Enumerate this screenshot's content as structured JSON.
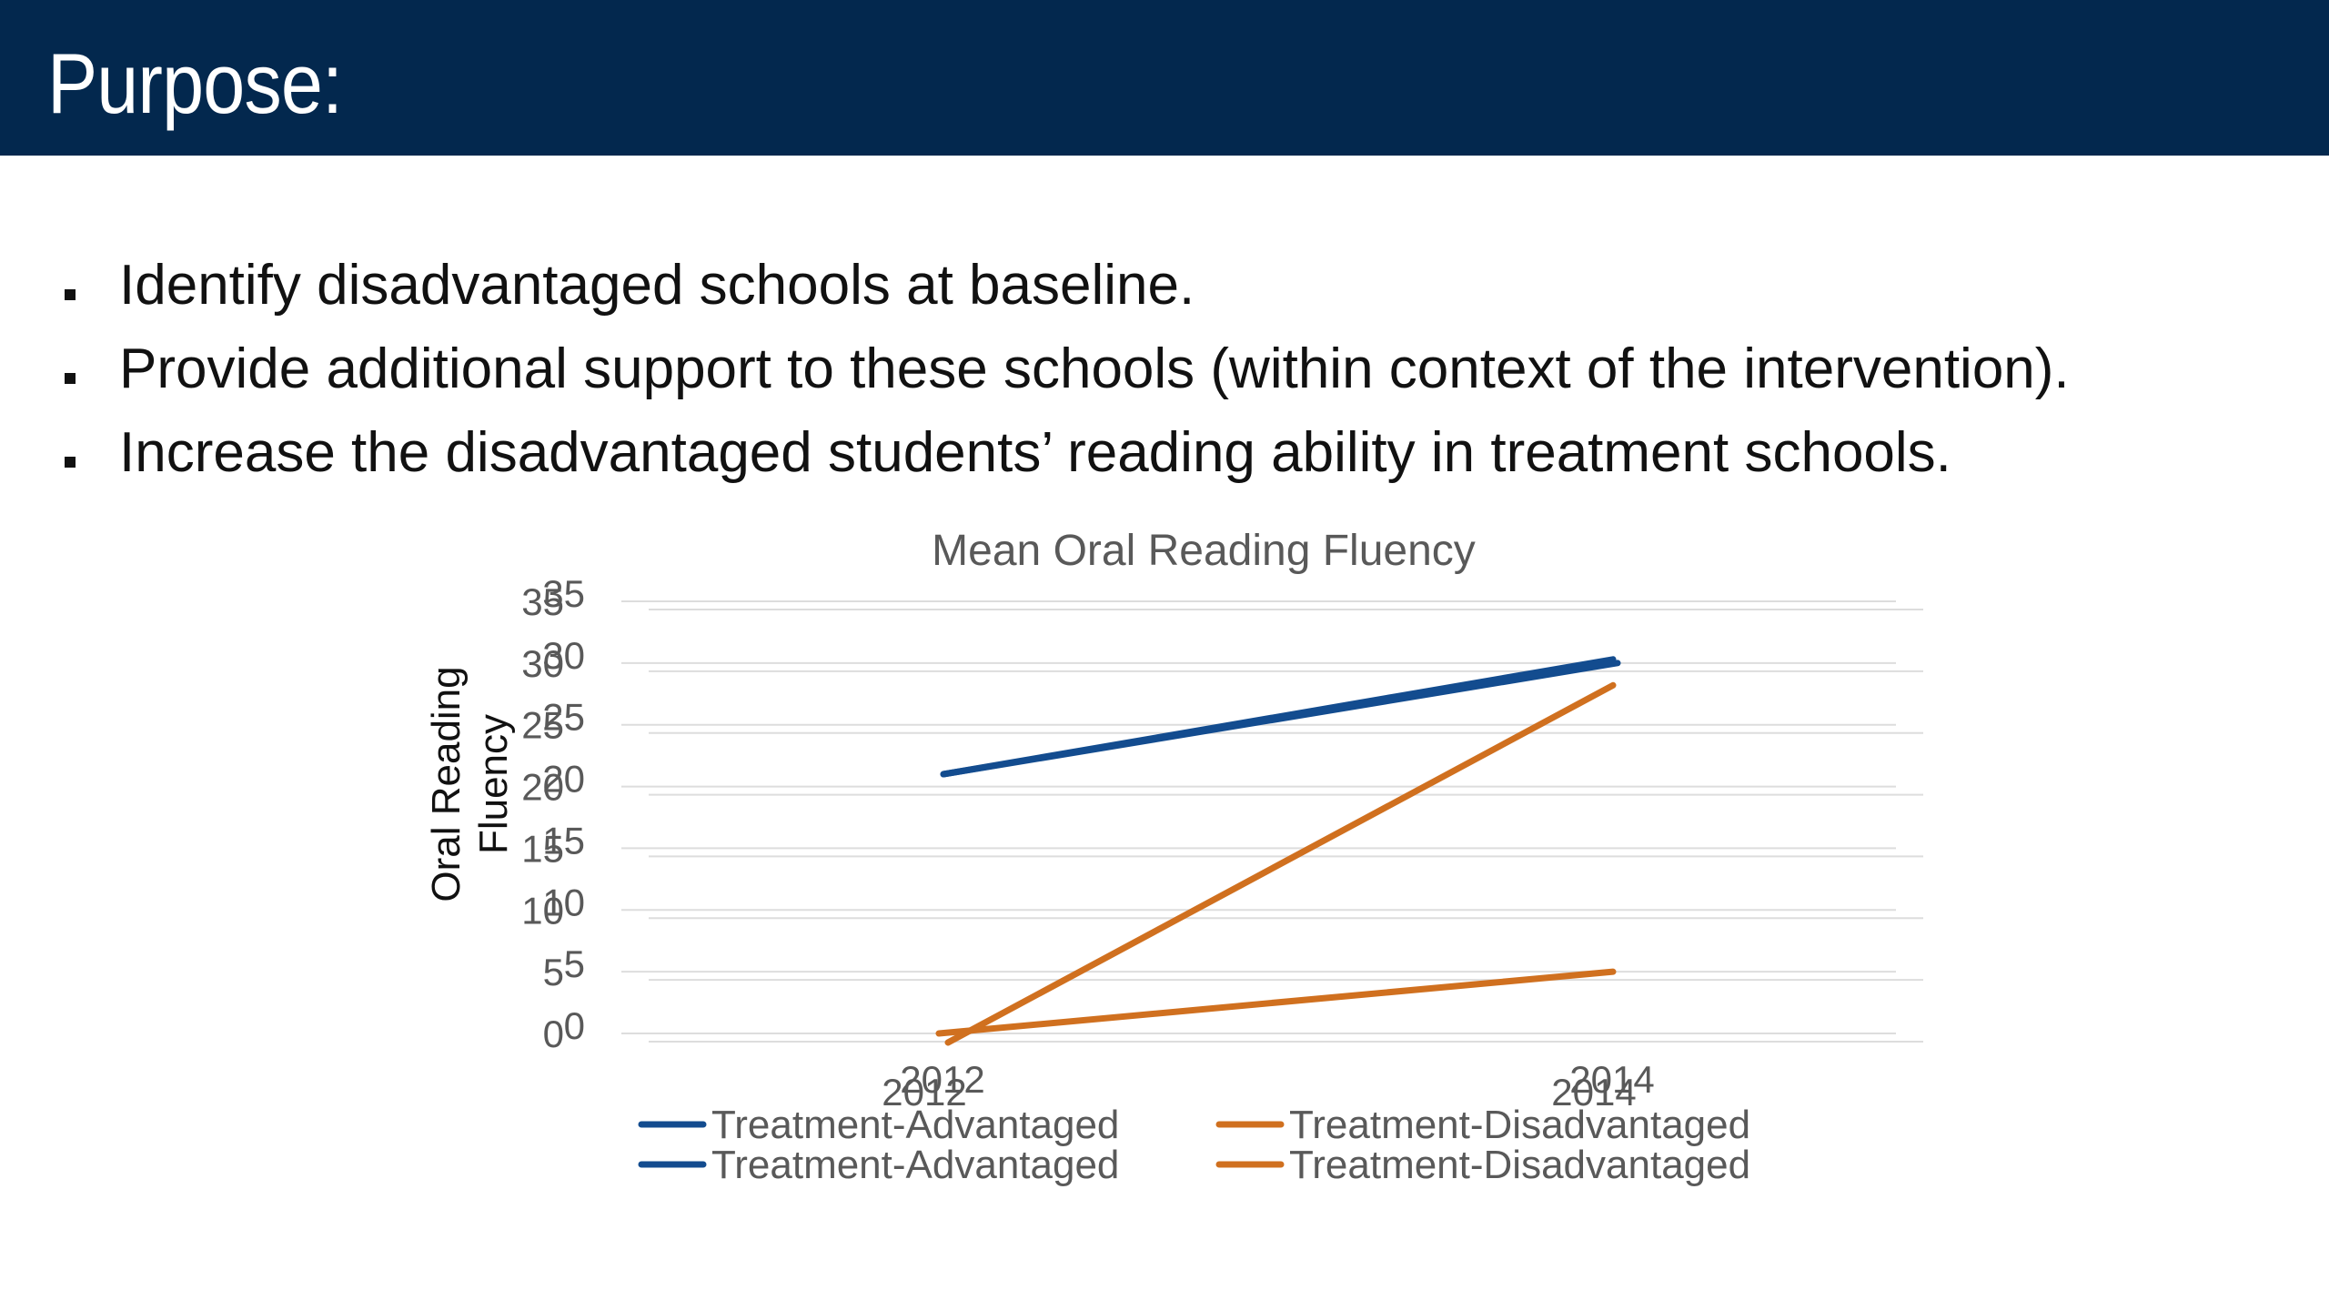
{
  "slide": {
    "title": "Purpose:",
    "bullets": [
      "Identify disadvantaged schools at baseline.",
      "Provide additional support to these schools (within context of the intervention).",
      "Increase the disadvantaged students’ reading ability in treatment schools."
    ]
  },
  "colors": {
    "title_bar": "#03284e",
    "advantaged": "#134c8f",
    "disadvantaged": "#d0701f",
    "grid": "#dddddd",
    "axis_text": "#595959"
  },
  "chart_data": {
    "type": "line",
    "title": "Mean Oral Reading Fluency",
    "ylabel": "Oral Reading Fluency",
    "xlabel": "",
    "categories": [
      "2012",
      "2014"
    ],
    "ylim": [
      0,
      35
    ],
    "yticks": [
      "0",
      "5",
      "10",
      "15",
      "20",
      "25",
      "30",
      "35"
    ],
    "grid": true,
    "legend_position": "bottom",
    "series": [
      {
        "name": "Treatment-Advantaged",
        "values": [
          21,
          30.3
        ],
        "color": "#134c8f"
      },
      {
        "name": "Treatment-Advantaged",
        "values": [
          21,
          30
        ],
        "color": "#134c8f"
      },
      {
        "name": "Treatment-Disadvantaged",
        "values": [
          0,
          28.2
        ],
        "color": "#d0701f"
      },
      {
        "name": "Treatment-Disadvantaged",
        "values": [
          0,
          5
        ],
        "color": "#d0701f"
      }
    ]
  }
}
